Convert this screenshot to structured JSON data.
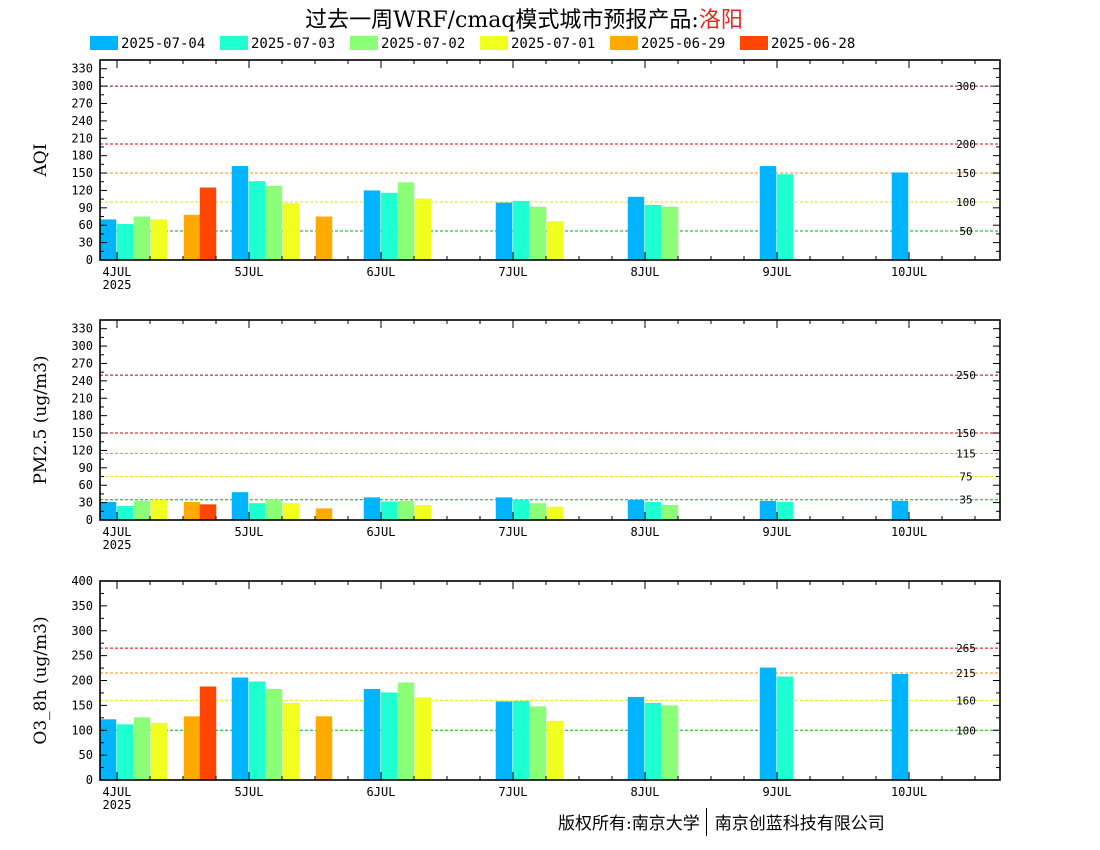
{
  "title": {
    "main": "过去一周WRF/cmaq模式城市预报产品:",
    "city": "洛阳"
  },
  "footer": {
    "left": "版权所有:南京大学",
    "right": "南京创蓝科技有限公司"
  },
  "legend": [
    {
      "label": "2025-07-04",
      "color": "#00b4ff"
    },
    {
      "label": "2025-07-03",
      "color": "#1effd2"
    },
    {
      "label": "2025-07-02",
      "color": "#8cff78"
    },
    {
      "label": "2025-07-01",
      "color": "#f0ff1e"
    },
    {
      "label": "2025-06-29",
      "color": "#ffaa00"
    },
    {
      "label": "2025-06-28",
      "color": "#ff4600"
    }
  ],
  "chart_data": [
    {
      "type": "bar",
      "ylabel": "AQI",
      "ylim": [
        0,
        345
      ],
      "yticks": [
        0,
        30,
        60,
        90,
        120,
        150,
        180,
        210,
        240,
        270,
        300,
        330
      ],
      "x_tick_labels": [
        "4JUL",
        "5JUL",
        "6JUL",
        "7JUL",
        "8JUL",
        "9JUL",
        "10JUL"
      ],
      "x_year_label": "2025",
      "thresholds": [
        {
          "value": 50,
          "label": "50",
          "color": "#00b400"
        },
        {
          "value": 100,
          "label": "100",
          "color": "#e6e600"
        },
        {
          "value": 150,
          "label": "150",
          "color": "#ff8c00"
        },
        {
          "value": 200,
          "label": "200",
          "color": "#dc0000"
        },
        {
          "value": 300,
          "label": "300",
          "color": "#960046"
        }
      ],
      "bars": [
        {
          "day": 0,
          "series": "2025-07-04",
          "value": 70
        },
        {
          "day": 0,
          "series": "2025-07-03",
          "value": 62
        },
        {
          "day": 0,
          "series": "2025-07-02",
          "value": 75
        },
        {
          "day": 0,
          "series": "2025-07-01",
          "value": 70
        },
        {
          "day": 0,
          "series": "2025-06-29",
          "value": 78
        },
        {
          "day": 0,
          "series": "2025-06-28",
          "value": 125
        },
        {
          "day": 1,
          "series": "2025-07-04",
          "value": 162
        },
        {
          "day": 1,
          "series": "2025-07-03",
          "value": 136
        },
        {
          "day": 1,
          "series": "2025-07-02",
          "value": 128
        },
        {
          "day": 1,
          "series": "2025-07-01",
          "value": 98
        },
        {
          "day": 1,
          "series": "2025-06-29",
          "value": 75
        },
        {
          "day": 2,
          "series": "2025-07-04",
          "value": 120
        },
        {
          "day": 2,
          "series": "2025-07-03",
          "value": 116
        },
        {
          "day": 2,
          "series": "2025-07-02",
          "value": 134
        },
        {
          "day": 2,
          "series": "2025-07-01",
          "value": 106
        },
        {
          "day": 3,
          "series": "2025-07-04",
          "value": 99
        },
        {
          "day": 3,
          "series": "2025-07-03",
          "value": 102
        },
        {
          "day": 3,
          "series": "2025-07-02",
          "value": 92
        },
        {
          "day": 3,
          "series": "2025-07-01",
          "value": 67
        },
        {
          "day": 4,
          "series": "2025-07-04",
          "value": 109
        },
        {
          "day": 4,
          "series": "2025-07-03",
          "value": 95
        },
        {
          "day": 4,
          "series": "2025-07-02",
          "value": 92
        },
        {
          "day": 5,
          "series": "2025-07-04",
          "value": 162
        },
        {
          "day": 5,
          "series": "2025-07-03",
          "value": 148
        },
        {
          "day": 6,
          "series": "2025-07-04",
          "value": 151
        }
      ]
    },
    {
      "type": "bar",
      "ylabel": "PM2.5 (ug/m3)",
      "ylim": [
        0,
        345
      ],
      "yticks": [
        0,
        30,
        60,
        90,
        120,
        150,
        180,
        210,
        240,
        270,
        300,
        330
      ],
      "x_tick_labels": [
        "4JUL",
        "5JUL",
        "6JUL",
        "7JUL",
        "8JUL",
        "9JUL",
        "10JUL"
      ],
      "x_year_label": "2025",
      "thresholds": [
        {
          "value": 35,
          "label": "35",
          "color": "#00b400"
        },
        {
          "value": 75,
          "label": "75",
          "color": "#e6e600"
        },
        {
          "value": 115,
          "label": "115",
          "color": "#ff8c00"
        },
        {
          "value": 150,
          "label": "150",
          "color": "#dc0000"
        },
        {
          "value": 250,
          "label": "250",
          "color": "#960046"
        }
      ],
      "bars": [
        {
          "day": 0,
          "series": "2025-07-04",
          "value": 31
        },
        {
          "day": 0,
          "series": "2025-07-03",
          "value": 24
        },
        {
          "day": 0,
          "series": "2025-07-02",
          "value": 33
        },
        {
          "day": 0,
          "series": "2025-07-01",
          "value": 35
        },
        {
          "day": 0,
          "series": "2025-06-29",
          "value": 31
        },
        {
          "day": 0,
          "series": "2025-06-28",
          "value": 27
        },
        {
          "day": 1,
          "series": "2025-07-04",
          "value": 48
        },
        {
          "day": 1,
          "series": "2025-07-03",
          "value": 29
        },
        {
          "day": 1,
          "series": "2025-07-02",
          "value": 35
        },
        {
          "day": 1,
          "series": "2025-07-01",
          "value": 29
        },
        {
          "day": 1,
          "series": "2025-06-29",
          "value": 20
        },
        {
          "day": 2,
          "series": "2025-07-04",
          "value": 39
        },
        {
          "day": 2,
          "series": "2025-07-03",
          "value": 32
        },
        {
          "day": 2,
          "series": "2025-07-02",
          "value": 33
        },
        {
          "day": 2,
          "series": "2025-07-01",
          "value": 26
        },
        {
          "day": 3,
          "series": "2025-07-04",
          "value": 39
        },
        {
          "day": 3,
          "series": "2025-07-03",
          "value": 35
        },
        {
          "day": 3,
          "series": "2025-07-02",
          "value": 29
        },
        {
          "day": 3,
          "series": "2025-07-01",
          "value": 23
        },
        {
          "day": 4,
          "series": "2025-07-04",
          "value": 35
        },
        {
          "day": 4,
          "series": "2025-07-03",
          "value": 31
        },
        {
          "day": 4,
          "series": "2025-07-02",
          "value": 26
        },
        {
          "day": 5,
          "series": "2025-07-04",
          "value": 33
        },
        {
          "day": 5,
          "series": "2025-07-03",
          "value": 31
        },
        {
          "day": 6,
          "series": "2025-07-04",
          "value": 33
        }
      ]
    },
    {
      "type": "bar",
      "ylabel": "O3_8h (ug/m3)",
      "ylim": [
        0,
        400
      ],
      "yticks": [
        0,
        50,
        100,
        150,
        200,
        250,
        300,
        350,
        400
      ],
      "x_tick_labels": [
        "4JUL",
        "5JUL",
        "6JUL",
        "7JUL",
        "8JUL",
        "9JUL",
        "10JUL"
      ],
      "x_year_label": "2025",
      "thresholds": [
        {
          "value": 100,
          "label": "100",
          "color": "#00b400"
        },
        {
          "value": 160,
          "label": "160",
          "color": "#e6e600"
        },
        {
          "value": 215,
          "label": "215",
          "color": "#ff8c00"
        },
        {
          "value": 265,
          "label": "265",
          "color": "#dc0000"
        }
      ],
      "bars": [
        {
          "day": 0,
          "series": "2025-07-04",
          "value": 122
        },
        {
          "day": 0,
          "series": "2025-07-03",
          "value": 112
        },
        {
          "day": 0,
          "series": "2025-07-02",
          "value": 126
        },
        {
          "day": 0,
          "series": "2025-07-01",
          "value": 115
        },
        {
          "day": 0,
          "series": "2025-06-29",
          "value": 128
        },
        {
          "day": 0,
          "series": "2025-06-28",
          "value": 188
        },
        {
          "day": 1,
          "series": "2025-07-04",
          "value": 206
        },
        {
          "day": 1,
          "series": "2025-07-03",
          "value": 198
        },
        {
          "day": 1,
          "series": "2025-07-02",
          "value": 183
        },
        {
          "day": 1,
          "series": "2025-07-01",
          "value": 155
        },
        {
          "day": 1,
          "series": "2025-06-29",
          "value": 128
        },
        {
          "day": 2,
          "series": "2025-07-04",
          "value": 183
        },
        {
          "day": 2,
          "series": "2025-07-03",
          "value": 176
        },
        {
          "day": 2,
          "series": "2025-07-02",
          "value": 196
        },
        {
          "day": 2,
          "series": "2025-07-01",
          "value": 166
        },
        {
          "day": 3,
          "series": "2025-07-04",
          "value": 158
        },
        {
          "day": 3,
          "series": "2025-07-03",
          "value": 159
        },
        {
          "day": 3,
          "series": "2025-07-02",
          "value": 148
        },
        {
          "day": 3,
          "series": "2025-07-01",
          "value": 119
        },
        {
          "day": 4,
          "series": "2025-07-04",
          "value": 167
        },
        {
          "day": 4,
          "series": "2025-07-03",
          "value": 155
        },
        {
          "day": 4,
          "series": "2025-07-02",
          "value": 150
        },
        {
          "day": 5,
          "series": "2025-07-04",
          "value": 226
        },
        {
          "day": 5,
          "series": "2025-07-03",
          "value": 208
        },
        {
          "day": 6,
          "series": "2025-07-04",
          "value": 213
        }
      ]
    }
  ]
}
